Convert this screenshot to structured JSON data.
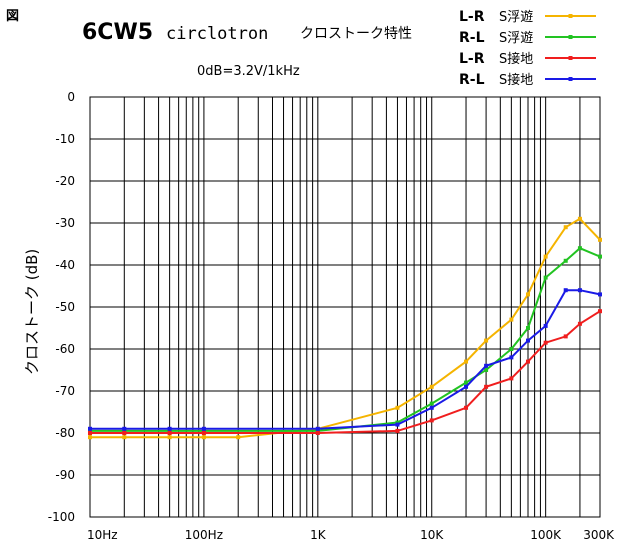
{
  "figure_label": "図",
  "chart_data": {
    "type": "line",
    "title_main": "6CW5",
    "title_sub": "circlotron",
    "title_jp": "クロストーク特性",
    "subtitle": "0dB=3.2V/1kHz",
    "ylabel": "クロストーク (dB)",
    "xlabel": "",
    "xscale": "log",
    "xlim": [
      10,
      300000
    ],
    "ylim": [
      -100,
      0
    ],
    "y_ticks": [
      0,
      -10,
      -20,
      -30,
      -40,
      -50,
      -60,
      -70,
      -80,
      -90,
      -100
    ],
    "y_tick_labels": [
      "0",
      "-10",
      "-20",
      "-30",
      "-40",
      "-50",
      "-60",
      "-70",
      "-80",
      "-90",
      "-100"
    ],
    "x_ticks": [
      10,
      100,
      1000,
      10000,
      100000,
      300000
    ],
    "x_tick_labels": [
      "10Hz",
      "100Hz",
      "1K",
      "10K",
      "100K",
      "300K"
    ],
    "grid": true,
    "legend_position": "top-right",
    "series": [
      {
        "name": "L-R S浮遊",
        "legend_ch": "L-R",
        "legend_desc": "S浮遊",
        "color": "#f5b400",
        "x": [
          10,
          20,
          50,
          100,
          200,
          1000,
          5000,
          10000,
          20000,
          30000,
          50000,
          70000,
          100000,
          150000,
          200000,
          300000
        ],
        "y": [
          -81,
          -81,
          -81,
          -81,
          -81,
          -79,
          -74,
          -69,
          -63,
          -58,
          -53,
          -47,
          -38,
          -31,
          -29,
          -34
        ]
      },
      {
        "name": "R-L S浮遊",
        "legend_ch": "R-L",
        "legend_desc": "S浮遊",
        "color": "#22c322",
        "x": [
          10,
          20,
          50,
          100,
          1000,
          5000,
          10000,
          20000,
          30000,
          50000,
          70000,
          100000,
          150000,
          200000,
          300000
        ],
        "y": [
          -79.5,
          -79.5,
          -79.5,
          -79.5,
          -79.5,
          -77.5,
          -73,
          -68,
          -65,
          -60,
          -55,
          -43,
          -39,
          -36,
          -38
        ]
      },
      {
        "name": "L-R S接地",
        "legend_ch": "L-R",
        "legend_desc": "S接地",
        "color": "#f01e1e",
        "x": [
          10,
          20,
          50,
          100,
          1000,
          5000,
          10000,
          20000,
          30000,
          50000,
          70000,
          100000,
          150000,
          200000,
          300000
        ],
        "y": [
          -80,
          -80,
          -80,
          -80,
          -80,
          -79.5,
          -77,
          -74,
          -69,
          -67,
          -63,
          -58.5,
          -57,
          -54,
          -51
        ]
      },
      {
        "name": "R-L S接地",
        "legend_ch": "R-L",
        "legend_desc": "S接地",
        "color": "#1a1ae6",
        "x": [
          10,
          20,
          50,
          100,
          1000,
          5000,
          10000,
          20000,
          30000,
          50000,
          70000,
          100000,
          150000,
          200000,
          300000
        ],
        "y": [
          -79,
          -79,
          -79,
          -79,
          -79,
          -78,
          -74,
          -69,
          -64,
          -62,
          -58,
          -54.5,
          -46,
          -46,
          -47
        ]
      }
    ]
  }
}
